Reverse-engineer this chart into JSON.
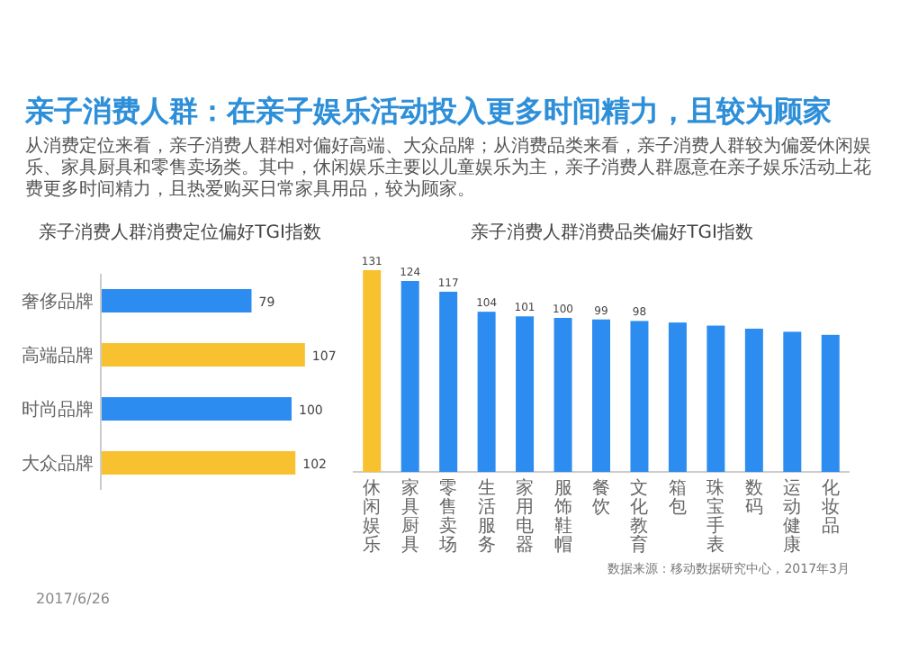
{
  "chart_data": [
    {
      "type": "other",
      "title": "亲子消费人群：在亲子娱乐活动投入更多时间精力，且较为顾家",
      "annotations": [
        "从消费定位来看，亲子消费人群相对偏好高端、大众品牌；从消费品类来看，亲子消费人群较为偏爱休闲娱乐、家具厨具和零售卖场类。其中，休闲娱乐主要以儿童娱乐为主，亲子消费人群愿意在亲子娱乐活动上花费更多时间精力，且热爱购买日常家具用品，较为顾家。",
        "2017/6/26"
      ]
    },
    {
      "type": "bar",
      "orientation": "horizontal",
      "title": "亲子消费人群消费定位偏好TGI指数",
      "categories": [
        "奢侈品牌",
        "高端品牌",
        "时尚品牌",
        "大众品牌"
      ],
      "values": [
        79,
        107,
        100,
        102
      ],
      "colors": [
        "#2d8cf0",
        "#f8c12f",
        "#2d8cf0",
        "#f8c12f"
      ],
      "data_labels": true
    },
    {
      "type": "bar",
      "title": "亲子消费人群消费品类偏好TGI指数",
      "categories": [
        "休闲娱乐",
        "家具厨具",
        "零售卖场",
        "生活服务",
        "家用电器",
        "服饰鞋帽",
        "餐饮",
        "文化教育",
        "箱包",
        "珠宝手表",
        "数码",
        "运动健康",
        "化妆品"
      ],
      "values": [
        131,
        124,
        117,
        104,
        101,
        100,
        99,
        98,
        97,
        95,
        93,
        91,
        89
      ],
      "colors": [
        "#f8c12f",
        "#2d8cf0",
        "#2d8cf0",
        "#2d8cf0",
        "#2d8cf0",
        "#2d8cf0",
        "#2d8cf0",
        "#2d8cf0",
        "#2d8cf0",
        "#2d8cf0",
        "#2d8cf0",
        "#2d8cf0",
        "#2d8cf0"
      ],
      "value_labels": [
        "131",
        "124",
        "117",
        "104",
        "101",
        "100",
        "99",
        "98",
        null,
        null,
        null,
        null,
        null
      ],
      "annotations": [
        "数据来源：移动数据研究中心，2017年3月"
      ]
    }
  ]
}
